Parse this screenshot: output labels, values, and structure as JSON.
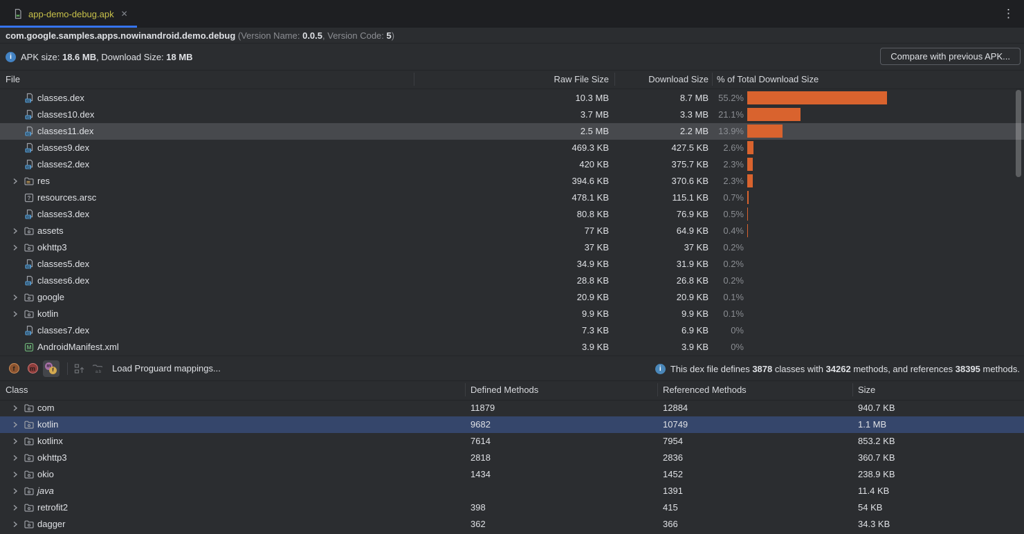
{
  "tab": {
    "title": "app-demo-debug.apk",
    "close_glyph": "✕",
    "kebab_glyph": "⋮"
  },
  "header": {
    "package": "com.google.samples.apps.nowinandroid.demo.debug",
    "ver_open": " (Version Name: ",
    "version_name": "0.0.5",
    "ver_mid": ", Version Code: ",
    "version_code": "5",
    "ver_close": ")"
  },
  "summary": {
    "info_glyph": "i",
    "apk_label": "APK size: ",
    "apk_size": "18.6 MB",
    "dl_label": ", Download Size: ",
    "download_size": "18 MB",
    "compare_button": "Compare with previous APK..."
  },
  "file_table": {
    "col_file": "File",
    "col_raw": "Raw File Size",
    "col_download": "Download Size",
    "col_pct": "% of Total Download Size",
    "bar_color": "#D9632E",
    "rows": [
      {
        "name": "classes.dex",
        "icon": "dex-file-icon",
        "chevron": false,
        "raw": "10.3 MB",
        "download": "8.7 MB",
        "pct_label": "55.2%",
        "pct": 55.2,
        "selected": false
      },
      {
        "name": "classes10.dex",
        "icon": "dex-file-icon",
        "chevron": false,
        "raw": "3.7 MB",
        "download": "3.3 MB",
        "pct_label": "21.1%",
        "pct": 21.1,
        "selected": false
      },
      {
        "name": "classes11.dex",
        "icon": "dex-file-icon",
        "chevron": false,
        "raw": "2.5 MB",
        "download": "2.2 MB",
        "pct_label": "13.9%",
        "pct": 13.9,
        "selected": true
      },
      {
        "name": "classes9.dex",
        "icon": "dex-file-icon",
        "chevron": false,
        "raw": "469.3 KB",
        "download": "427.5 KB",
        "pct_label": "2.6%",
        "pct": 2.6,
        "selected": false
      },
      {
        "name": "classes2.dex",
        "icon": "dex-file-icon",
        "chevron": false,
        "raw": "420 KB",
        "download": "375.7 KB",
        "pct_label": "2.3%",
        "pct": 2.3,
        "selected": false
      },
      {
        "name": "res",
        "icon": "res-folder-icon",
        "chevron": true,
        "raw": "394.6 KB",
        "download": "370.6 KB",
        "pct_label": "2.3%",
        "pct": 2.3,
        "selected": false
      },
      {
        "name": "resources.arsc",
        "icon": "arsc-file-icon",
        "chevron": false,
        "raw": "478.1 KB",
        "download": "115.1 KB",
        "pct_label": "0.7%",
        "pct": 0.7,
        "selected": false
      },
      {
        "name": "classes3.dex",
        "icon": "dex-file-icon",
        "chevron": false,
        "raw": "80.8 KB",
        "download": "76.9 KB",
        "pct_label": "0.5%",
        "pct": 0.5,
        "selected": false
      },
      {
        "name": "assets",
        "icon": "folder-icon",
        "chevron": true,
        "raw": "77 KB",
        "download": "64.9 KB",
        "pct_label": "0.4%",
        "pct": 0.4,
        "selected": false
      },
      {
        "name": "okhttp3",
        "icon": "folder-icon",
        "chevron": true,
        "raw": "37 KB",
        "download": "37 KB",
        "pct_label": "0.2%",
        "pct": 0.2,
        "selected": false
      },
      {
        "name": "classes5.dex",
        "icon": "dex-file-icon",
        "chevron": false,
        "raw": "34.9 KB",
        "download": "31.9 KB",
        "pct_label": "0.2%",
        "pct": 0.2,
        "selected": false
      },
      {
        "name": "classes6.dex",
        "icon": "dex-file-icon",
        "chevron": false,
        "raw": "28.8 KB",
        "download": "26.8 KB",
        "pct_label": "0.2%",
        "pct": 0.2,
        "selected": false
      },
      {
        "name": "google",
        "icon": "folder-icon",
        "chevron": true,
        "raw": "20.9 KB",
        "download": "20.9 KB",
        "pct_label": "0.1%",
        "pct": 0.1,
        "selected": false
      },
      {
        "name": "kotlin",
        "icon": "folder-icon",
        "chevron": true,
        "raw": "9.9 KB",
        "download": "9.9 KB",
        "pct_label": "0.1%",
        "pct": 0.1,
        "selected": false
      },
      {
        "name": "classes7.dex",
        "icon": "dex-file-icon",
        "chevron": false,
        "raw": "7.3 KB",
        "download": "6.9 KB",
        "pct_label": "0%",
        "pct": 0,
        "selected": false
      },
      {
        "name": "AndroidManifest.xml",
        "icon": "manifest-file-icon",
        "chevron": false,
        "raw": "3.9 KB",
        "download": "3.9 KB",
        "pct_label": "0%",
        "pct": 0,
        "selected": false
      }
    ]
  },
  "dex_toolbar": {
    "fields_glyph": "f",
    "methods_glyph": "m",
    "ref_m_glyph": "m",
    "ref_f_glyph": "f",
    "load_label": "Load Proguard mappings...",
    "info_glyph": "i",
    "info_p1": "This dex file defines ",
    "classes_count": "3878",
    "info_p2": " classes with ",
    "methods_count": "34262",
    "info_p3": " methods, and references ",
    "references_count": "38395",
    "info_p4": " methods."
  },
  "class_table": {
    "col_class": "Class",
    "col_defined": "Defined Methods",
    "col_referenced": "Referenced Methods",
    "col_size": "Size",
    "rows": [
      {
        "name": "com",
        "defined": "11879",
        "referenced": "12884",
        "size": "940.7 KB",
        "selected": false,
        "italic": false
      },
      {
        "name": "kotlin",
        "defined": "9682",
        "referenced": "10749",
        "size": "1.1 MB",
        "selected": true,
        "italic": false
      },
      {
        "name": "kotlinx",
        "defined": "7614",
        "referenced": "7954",
        "size": "853.2 KB",
        "selected": false,
        "italic": false
      },
      {
        "name": "okhttp3",
        "defined": "2818",
        "referenced": "2836",
        "size": "360.7 KB",
        "selected": false,
        "italic": false
      },
      {
        "name": "okio",
        "defined": "1434",
        "referenced": "1452",
        "size": "238.9 KB",
        "selected": false,
        "italic": false
      },
      {
        "name": "java",
        "defined": "",
        "referenced": "1391",
        "size": "11.4 KB",
        "selected": false,
        "italic": true
      },
      {
        "name": "retrofit2",
        "defined": "398",
        "referenced": "415",
        "size": "54 KB",
        "selected": false,
        "italic": false
      },
      {
        "name": "dagger",
        "defined": "362",
        "referenced": "366",
        "size": "34.3 KB",
        "selected": false,
        "italic": false
      }
    ]
  }
}
